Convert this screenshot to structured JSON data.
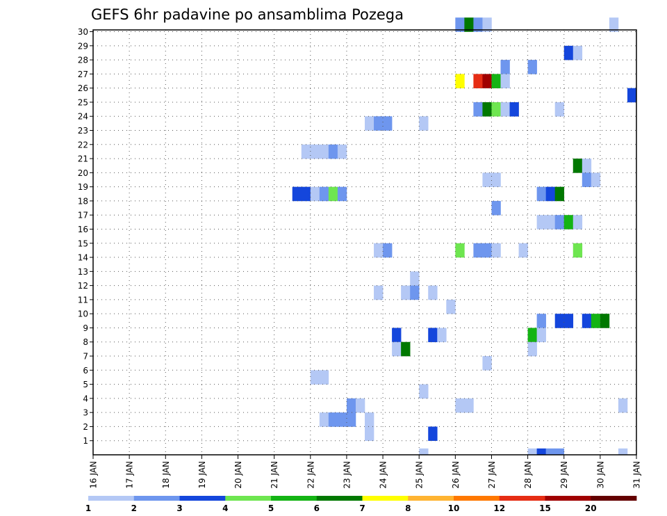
{
  "chart_data": {
    "type": "heatmap",
    "title": "GEFS 6hr padavine po ansamblima Pozega",
    "xlabel": "",
    "ylabel": "",
    "x_tick_labels": [
      "16 JAN",
      "17 JAN",
      "18 JAN",
      "19 JAN",
      "20 JAN",
      "21 JAN",
      "22 JAN",
      "23 JAN",
      "24 JAN",
      "25 JAN",
      "26 JAN",
      "27 JAN",
      "28 JAN",
      "29 JAN",
      "30 JAN",
      "31 JAN"
    ],
    "x_range_days": [
      16,
      31
    ],
    "y_tick_labels": [
      "1",
      "2",
      "3",
      "4",
      "5",
      "6",
      "7",
      "8",
      "9",
      "10",
      "11",
      "12",
      "13",
      "14",
      "15",
      "16",
      "17",
      "18",
      "19",
      "20",
      "21",
      "22",
      "23",
      "24",
      "25",
      "26",
      "27",
      "28",
      "29",
      "30"
    ],
    "y_range_members": [
      0,
      30
    ],
    "grid": "dotted",
    "color_scale": {
      "labels": [
        "1",
        "2",
        "3",
        "4",
        "5",
        "6",
        "7",
        "8",
        "10",
        "12",
        "15",
        "20"
      ],
      "colors": [
        "#b4c8f5",
        "#6e96ee",
        "#1446dc",
        "#6ee650",
        "#14b414",
        "#007800",
        "#ffff00",
        "#ffb432",
        "#ff7800",
        "#e62d14",
        "#a00000",
        "#640000"
      ]
    },
    "cells": [
      {
        "member": 30,
        "start_day": 26.0,
        "colors": [
          "#6e96ee",
          "#007800",
          "#6e96ee",
          "#b4c8f5"
        ]
      },
      {
        "member": 30,
        "start_day": 30.25,
        "colors": [
          "#b4c8f5"
        ]
      },
      {
        "member": 28,
        "start_day": 29.0,
        "colors": [
          "#1446dc",
          "#b4c8f5"
        ]
      },
      {
        "member": 27,
        "start_day": 27.25,
        "colors": [
          "#6e96ee"
        ]
      },
      {
        "member": 27,
        "start_day": 28.0,
        "colors": [
          "#6e96ee"
        ]
      },
      {
        "member": 26,
        "start_day": 26.0,
        "colors": [
          "#ffff00",
          "#ffffff",
          "#e62d14",
          "#a00000",
          "#14b414",
          "#b4c8f5"
        ]
      },
      {
        "member": 25,
        "start_day": 30.75,
        "colors": [
          "#1446dc"
        ]
      },
      {
        "member": 24,
        "start_day": 26.5,
        "colors": [
          "#6e96ee",
          "#007800",
          "#6ee650",
          "#b4c8f5",
          "#1446dc"
        ]
      },
      {
        "member": 24,
        "start_day": 28.75,
        "colors": [
          "#b4c8f5"
        ]
      },
      {
        "member": 23,
        "start_day": 23.5,
        "colors": [
          "#b4c8f5",
          "#6e96ee",
          "#6e96ee"
        ]
      },
      {
        "member": 23,
        "start_day": 25.0,
        "colors": [
          "#b4c8f5"
        ]
      },
      {
        "member": 21,
        "start_day": 21.75,
        "colors": [
          "#b4c8f5",
          "#b4c8f5",
          "#b4c8f5",
          "#6e96ee",
          "#b4c8f5"
        ]
      },
      {
        "member": 20,
        "start_day": 29.25,
        "colors": [
          "#007800",
          "#b4c8f5"
        ]
      },
      {
        "member": 19,
        "start_day": 26.75,
        "colors": [
          "#b4c8f5",
          "#b4c8f5"
        ]
      },
      {
        "member": 19,
        "start_day": 29.5,
        "colors": [
          "#6e96ee",
          "#b4c8f5"
        ]
      },
      {
        "member": 18,
        "start_day": 21.5,
        "colors": [
          "#1446dc",
          "#1446dc",
          "#b4c8f5",
          "#6e96ee",
          "#6ee650",
          "#6e96ee"
        ]
      },
      {
        "member": 18,
        "start_day": 28.25,
        "colors": [
          "#6e96ee",
          "#1446dc",
          "#007800"
        ]
      },
      {
        "member": 17,
        "start_day": 27.0,
        "colors": [
          "#6e96ee"
        ]
      },
      {
        "member": 16,
        "start_day": 28.25,
        "colors": [
          "#b4c8f5",
          "#b4c8f5",
          "#6e96ee",
          "#14b414",
          "#b4c8f5"
        ]
      },
      {
        "member": 14,
        "start_day": 23.75,
        "colors": [
          "#b4c8f5",
          "#6e96ee"
        ]
      },
      {
        "member": 14,
        "start_day": 26.0,
        "colors": [
          "#6ee650",
          "#ffffff",
          "#6e96ee",
          "#6e96ee",
          "#b4c8f5"
        ]
      },
      {
        "member": 14,
        "start_day": 27.75,
        "colors": [
          "#b4c8f5"
        ]
      },
      {
        "member": 14,
        "start_day": 29.25,
        "colors": [
          "#6ee650"
        ]
      },
      {
        "member": 12,
        "start_day": 24.75,
        "colors": [
          "#b4c8f5"
        ]
      },
      {
        "member": 11,
        "start_day": 23.75,
        "colors": [
          "#b4c8f5"
        ]
      },
      {
        "member": 11,
        "start_day": 24.5,
        "colors": [
          "#b4c8f5",
          "#6e96ee",
          "#ffffff",
          "#b4c8f5"
        ]
      },
      {
        "member": 10,
        "start_day": 25.75,
        "colors": [
          "#b4c8f5"
        ]
      },
      {
        "member": 9,
        "start_day": 28.25,
        "colors": [
          "#6e96ee",
          "#ffffff",
          "#1446dc",
          "#1446dc"
        ]
      },
      {
        "member": 9,
        "start_day": 29.5,
        "colors": [
          "#1446dc",
          "#14b414",
          "#007800"
        ]
      },
      {
        "member": 8,
        "start_day": 24.25,
        "colors": [
          "#1446dc"
        ]
      },
      {
        "member": 8,
        "start_day": 25.25,
        "colors": [
          "#1446dc",
          "#b4c8f5"
        ]
      },
      {
        "member": 8,
        "start_day": 28.0,
        "colors": [
          "#14b414",
          "#b4c8f5"
        ]
      },
      {
        "member": 7,
        "start_day": 24.25,
        "colors": [
          "#b4c8f5",
          "#007800"
        ]
      },
      {
        "member": 7,
        "start_day": 28.0,
        "colors": [
          "#b4c8f5"
        ]
      },
      {
        "member": 6,
        "start_day": 26.75,
        "colors": [
          "#b4c8f5"
        ]
      },
      {
        "member": 5,
        "start_day": 22.0,
        "colors": [
          "#b4c8f5",
          "#b4c8f5"
        ]
      },
      {
        "member": 4,
        "start_day": 25.0,
        "colors": [
          "#b4c8f5"
        ]
      },
      {
        "member": 3,
        "start_day": 23.0,
        "colors": [
          "#6e96ee",
          "#b4c8f5"
        ]
      },
      {
        "member": 3,
        "start_day": 26.0,
        "colors": [
          "#b4c8f5",
          "#b4c8f5"
        ]
      },
      {
        "member": 3,
        "start_day": 30.5,
        "colors": [
          "#b4c8f5"
        ]
      },
      {
        "member": 2,
        "start_day": 22.25,
        "colors": [
          "#b4c8f5",
          "#6e96ee",
          "#6e96ee",
          "#6e96ee",
          "#ffffff",
          "#b4c8f5"
        ]
      },
      {
        "member": 1,
        "start_day": 23.5,
        "colors": [
          "#b4c8f5"
        ]
      },
      {
        "member": 1,
        "start_day": 25.25,
        "colors": [
          "#1446dc"
        ]
      },
      {
        "member": 0,
        "start_day": 25.0,
        "colors": [
          "#b4c8f5"
        ]
      },
      {
        "member": 0,
        "start_day": 28.0,
        "colors": [
          "#b4c8f5",
          "#1446dc",
          "#6e96ee",
          "#6e96ee"
        ]
      },
      {
        "member": 0,
        "start_day": 30.5,
        "colors": [
          "#b4c8f5"
        ]
      }
    ]
  }
}
